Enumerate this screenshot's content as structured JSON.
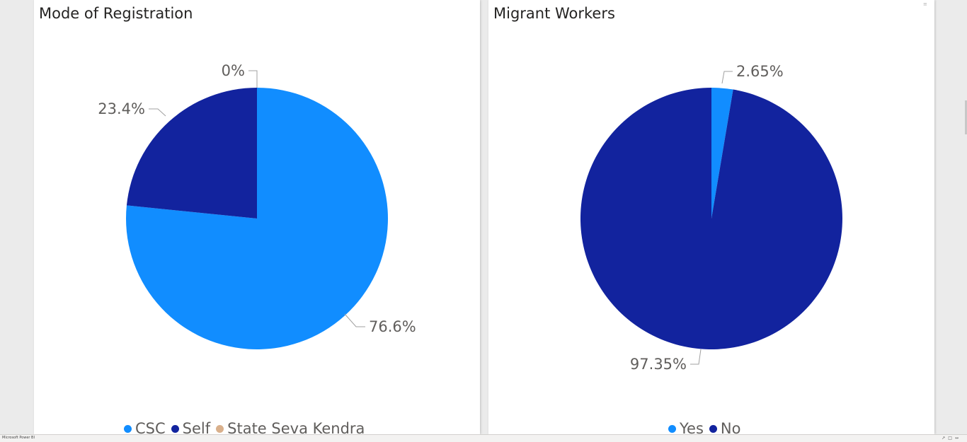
{
  "chart_data": [
    {
      "type": "pie",
      "title": "Mode of Registration",
      "categories": [
        "CSC",
        "Self",
        "State Seva Kendra"
      ],
      "values": [
        76.6,
        23.4,
        0
      ],
      "labels": [
        "76.6%",
        "23.4%",
        "0%"
      ],
      "colors": [
        "#118dff",
        "#12239e",
        "#d9b08c"
      ],
      "legend_position": "bottom"
    },
    {
      "type": "pie",
      "title": "Migrant Workers",
      "categories": [
        "Yes",
        "No"
      ],
      "values": [
        2.65,
        97.35
      ],
      "labels": [
        "2.65%",
        "97.35%"
      ],
      "colors": [
        "#118dff",
        "#12239e"
      ],
      "legend_position": "bottom"
    }
  ],
  "status_bar": {
    "app_name": "Microsoft Power BI"
  }
}
